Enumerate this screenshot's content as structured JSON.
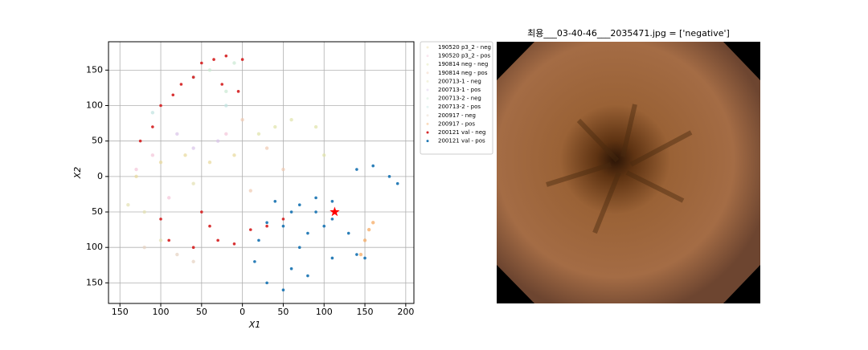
{
  "chart_data": {
    "type": "scatter",
    "xlabel": "X1",
    "ylabel": "X2",
    "xlim": [
      -164,
      210
    ],
    "ylim": [
      -179,
      190
    ],
    "xticks": [
      {
        "value": -150,
        "label": "150"
      },
      {
        "value": -100,
        "label": "100"
      },
      {
        "value": -50,
        "label": "50"
      },
      0,
      50,
      100,
      150,
      200
    ],
    "yticks": [
      150,
      100,
      50,
      0,
      {
        "value": -50,
        "label": "50"
      },
      {
        "value": -100,
        "label": "100"
      },
      {
        "value": -150,
        "label": "150"
      }
    ],
    "grid": true,
    "legend": "outside right",
    "series": [
      {
        "name": "190520 p3_2 - neg",
        "color": "#e8d99a",
        "x": [
          -130,
          -100,
          -70,
          -40,
          -10
        ],
        "y": [
          0,
          20,
          30,
          20,
          30
        ]
      },
      {
        "name": "190520 p3_2 - pos",
        "color": "#f3c4d8",
        "x": [
          -130,
          -20,
          -90,
          -110
        ],
        "y": [
          10,
          60,
          -30,
          30
        ]
      },
      {
        "name": "190814 neg - neg",
        "color": "#dfe3a8",
        "x": [
          20,
          40,
          60,
          90,
          100
        ],
        "y": [
          60,
          70,
          80,
          70,
          30
        ]
      },
      {
        "name": "190814 neg - pos",
        "color": "#f0c9b0",
        "x": [
          30,
          50,
          10,
          0
        ],
        "y": [
          40,
          10,
          -20,
          80
        ]
      },
      {
        "name": "200713-1 - neg",
        "color": "#e3e0b0",
        "x": [
          -60,
          -120,
          -100,
          -140
        ],
        "y": [
          -10,
          -50,
          -90,
          -40
        ]
      },
      {
        "name": "200713-1 - pos",
        "color": "#d8c3e8",
        "x": [
          -80,
          -60,
          -30
        ],
        "y": [
          60,
          40,
          50
        ]
      },
      {
        "name": "200713-2 - neg",
        "color": "#c9e8d2",
        "x": [
          -40,
          -10,
          -20
        ],
        "y": [
          150,
          160,
          120
        ]
      },
      {
        "name": "200713-2 - pos",
        "color": "#bfe3e0",
        "x": [
          -60,
          -110,
          -20
        ],
        "y": [
          140,
          90,
          100
        ]
      },
      {
        "name": "200917 - neg",
        "color": "#e6d2c0",
        "x": [
          -80,
          -120,
          -60
        ],
        "y": [
          -110,
          -100,
          -120
        ]
      },
      {
        "name": "200917 - pos",
        "color": "#f5a55a",
        "x": [
          150,
          155,
          160,
          145
        ],
        "y": [
          -90,
          -75,
          -65,
          -110
        ]
      },
      {
        "name": "200121 val - neg",
        "color": "#d62728",
        "x": [
          -125,
          -110,
          -100,
          -85,
          -75,
          -60,
          -50,
          -35,
          -20,
          0,
          -50,
          -40,
          -30,
          -10,
          10,
          30,
          50,
          -60,
          -100,
          -90,
          -25,
          -5
        ],
        "y": [
          50,
          70,
          100,
          115,
          130,
          140,
          160,
          165,
          170,
          165,
          -50,
          -70,
          -90,
          -95,
          -75,
          -70,
          -60,
          -100,
          -60,
          -90,
          130,
          120
        ]
      },
      {
        "name": "200121 val - pos",
        "color": "#1f77b4",
        "x": [
          20,
          15,
          30,
          50,
          60,
          70,
          80,
          100,
          110,
          30,
          50,
          60,
          40,
          70,
          90,
          110,
          90,
          130,
          140,
          150,
          140,
          160,
          180,
          190,
          110,
          80
        ],
        "y": [
          -90,
          -120,
          -150,
          -160,
          -130,
          -100,
          -80,
          -70,
          -60,
          -65,
          -70,
          -50,
          -35,
          -40,
          -30,
          -35,
          -50,
          -80,
          -110,
          -115,
          10,
          15,
          0,
          -10,
          -115,
          -140
        ]
      }
    ],
    "highlight": {
      "x": 113,
      "y": -50,
      "color": "#ff0000"
    }
  },
  "image": {
    "title": "최용___03-40-46___2035471.jpg = ['negative']"
  }
}
